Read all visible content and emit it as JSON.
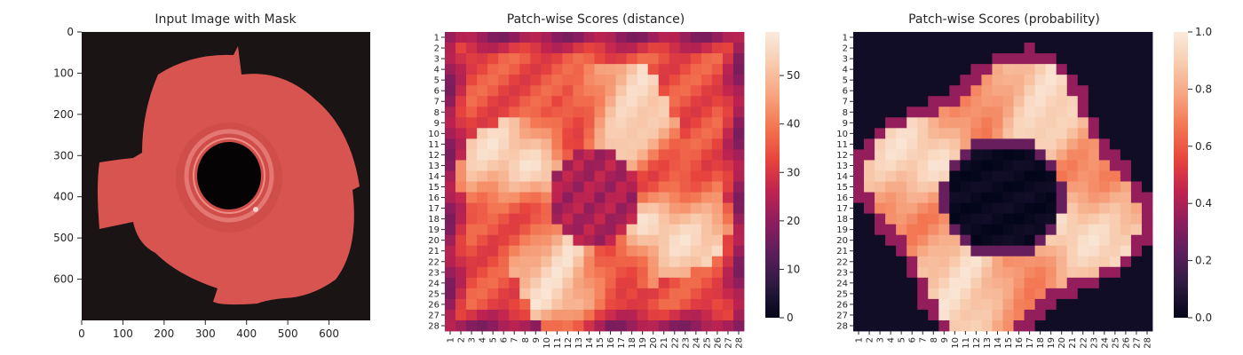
{
  "chart_data": [
    {
      "type": "image",
      "title": "Input Image with Mask",
      "xlim": [
        0,
        700
      ],
      "ylim": [
        700,
        0
      ],
      "xticks": [
        0,
        100,
        200,
        300,
        400,
        500,
        600
      ],
      "yticks": [
        0,
        100,
        200,
        300,
        400,
        500,
        600
      ],
      "colors": {
        "background": "#1a1414",
        "part": "#d85450",
        "ring": "#e47772"
      }
    },
    {
      "type": "heatmap",
      "title": "Patch-wise Scores (distance)",
      "rows": 28,
      "cols": 28,
      "row_labels": [
        "1",
        "2",
        "3",
        "4",
        "5",
        "6",
        "7",
        "8",
        "9",
        "10",
        "11",
        "12",
        "13",
        "14",
        "15",
        "16",
        "17",
        "18",
        "19",
        "20",
        "21",
        "22",
        "23",
        "24",
        "25",
        "26",
        "27",
        "28"
      ],
      "col_labels": [
        "1",
        "2",
        "3",
        "4",
        "5",
        "6",
        "7",
        "8",
        "9",
        "10",
        "11",
        "12",
        "13",
        "14",
        "15",
        "16",
        "17",
        "18",
        "19",
        "20",
        "21",
        "22",
        "23",
        "24",
        "25",
        "26",
        "27",
        "28"
      ],
      "value_range": [
        0,
        59
      ],
      "colorbar_ticks": [
        0,
        10,
        20,
        30,
        40,
        50
      ]
    },
    {
      "type": "heatmap",
      "title": "Patch-wise Scores (probability)",
      "rows": 28,
      "cols": 28,
      "row_labels": [
        "1",
        "2",
        "3",
        "4",
        "5",
        "6",
        "7",
        "8",
        "9",
        "10",
        "11",
        "12",
        "13",
        "14",
        "15",
        "16",
        "17",
        "18",
        "19",
        "20",
        "21",
        "22",
        "23",
        "24",
        "25",
        "26",
        "27",
        "28"
      ],
      "col_labels": [
        "1",
        "2",
        "3",
        "4",
        "5",
        "6",
        "7",
        "8",
        "9",
        "10",
        "11",
        "12",
        "13",
        "14",
        "15",
        "16",
        "17",
        "18",
        "19",
        "20",
        "21",
        "22",
        "23",
        "24",
        "25",
        "26",
        "27",
        "28"
      ],
      "value_range": [
        0.0,
        1.0
      ],
      "colorbar_ticks": [
        "0.0",
        "0.2",
        "0.4",
        "0.6",
        "0.8",
        "1.0"
      ]
    }
  ],
  "colormap": {
    "name": "rocket",
    "stops": [
      "#03051a",
      "#2b1a3f",
      "#5a1e5c",
      "#8c1d5e",
      "#c1244f",
      "#e8453d",
      "#f37651",
      "#f6a47f",
      "#f8cbae",
      "#faebdd"
    ]
  }
}
